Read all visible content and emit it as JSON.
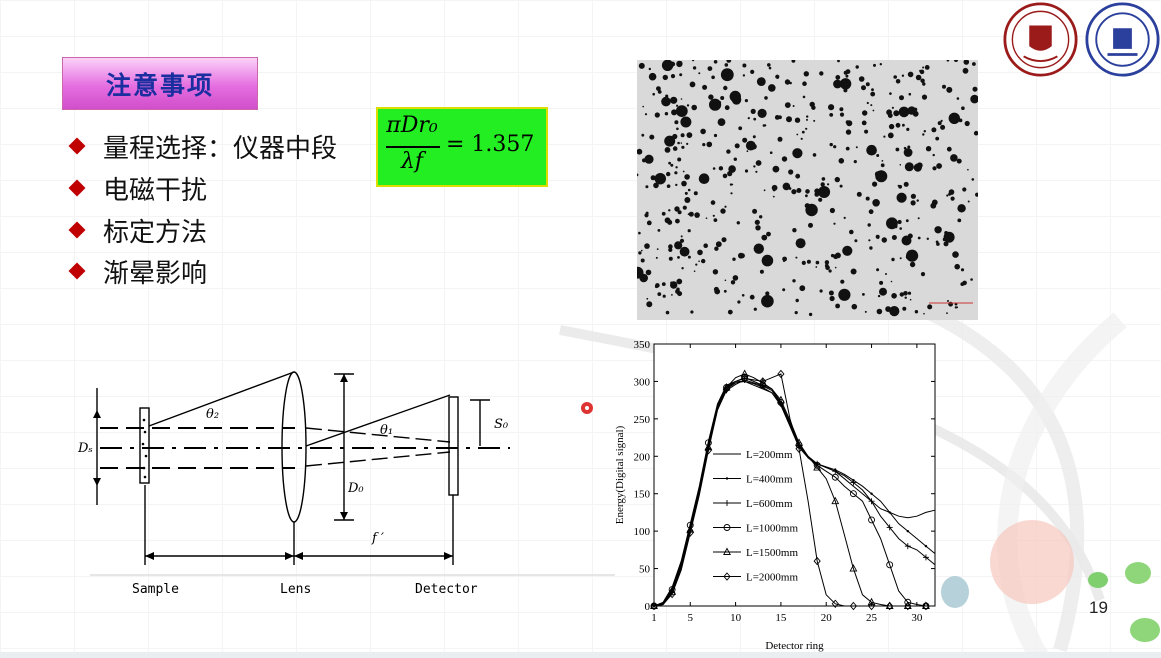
{
  "title": "注意事项",
  "bullets": [
    "量程选择：仪器中段",
    "电磁干扰",
    "标定方法",
    "渐晕影响"
  ],
  "formula": {
    "numerator": "πDr₀",
    "denominator": "λf",
    "value": "= 1.357",
    "color": "#22ee22"
  },
  "diagram": {
    "sample_label": "Sample",
    "lens_label": "Lens",
    "detector_label": "Detector",
    "d_s": "Dₛ",
    "d_o": "D₀",
    "s_o": "S₀",
    "theta2": "θ₂",
    "theta1": "θ₁",
    "focal": "f ′"
  },
  "chart_data": {
    "type": "line",
    "xlabel": "Detector ring",
    "ylabel": "Energy(Digital signal)",
    "xlim": [
      1,
      32
    ],
    "ylim": [
      0,
      350
    ],
    "xticks": [
      1,
      5,
      10,
      15,
      20,
      25,
      30
    ],
    "yticks": [
      0,
      50,
      100,
      150,
      200,
      250,
      300,
      350
    ],
    "legend_position": "center-left",
    "series": [
      {
        "name": "L=200mm",
        "marker": "none",
        "x": [
          1,
          2,
          3,
          4,
          5,
          6,
          7,
          8,
          9,
          10,
          11,
          12,
          13,
          14,
          15,
          16,
          17,
          18,
          19,
          20,
          21,
          22,
          23,
          24,
          25,
          26,
          27,
          28,
          29,
          30,
          31,
          32
        ],
        "values": [
          0,
          5,
          25,
          60,
          110,
          160,
          220,
          270,
          295,
          300,
          300,
          295,
          290,
          285,
          270,
          245,
          215,
          200,
          190,
          185,
          180,
          170,
          160,
          150,
          140,
          130,
          125,
          120,
          118,
          120,
          125,
          128
        ]
      },
      {
        "name": "L=400mm",
        "marker": "dot",
        "x": [
          1,
          2,
          3,
          4,
          5,
          6,
          7,
          8,
          9,
          10,
          11,
          12,
          13,
          14,
          15,
          16,
          17,
          18,
          19,
          20,
          21,
          22,
          23,
          24,
          25,
          26,
          27,
          28,
          29,
          30,
          31,
          32
        ],
        "values": [
          0,
          3,
          20,
          55,
          105,
          155,
          215,
          265,
          290,
          298,
          300,
          297,
          292,
          285,
          268,
          240,
          212,
          198,
          190,
          186,
          182,
          176,
          168,
          160,
          150,
          140,
          125,
          110,
          100,
          90,
          80,
          70
        ]
      },
      {
        "name": "L=600mm",
        "marker": "plus",
        "x": [
          1,
          2,
          3,
          4,
          5,
          6,
          7,
          8,
          9,
          10,
          11,
          12,
          13,
          14,
          15,
          16,
          17,
          18,
          19,
          20,
          21,
          22,
          23,
          24,
          25,
          26,
          27,
          28,
          29,
          30,
          31,
          32
        ],
        "values": [
          0,
          2,
          18,
          50,
          100,
          150,
          210,
          262,
          288,
          296,
          302,
          298,
          294,
          288,
          270,
          242,
          214,
          199,
          190,
          185,
          180,
          174,
          165,
          155,
          140,
          120,
          105,
          90,
          80,
          75,
          65,
          55
        ]
      },
      {
        "name": "L=1000mm",
        "marker": "circle",
        "x": [
          1,
          2,
          3,
          4,
          5,
          6,
          7,
          8,
          9,
          10,
          11,
          12,
          13,
          14,
          15,
          16,
          17,
          18,
          19,
          20,
          21,
          22,
          23,
          24,
          25,
          26,
          27,
          28,
          29,
          30,
          31,
          32
        ],
        "values": [
          0,
          4,
          22,
          58,
          108,
          158,
          218,
          268,
          292,
          300,
          305,
          300,
          295,
          290,
          272,
          245,
          215,
          198,
          188,
          180,
          172,
          160,
          150,
          140,
          115,
          90,
          55,
          20,
          5,
          2,
          0,
          0
        ]
      },
      {
        "name": "L=1500mm",
        "marker": "triangle",
        "x": [
          1,
          2,
          3,
          4,
          5,
          6,
          7,
          8,
          9,
          10,
          11,
          12,
          13,
          14,
          15,
          16,
          17,
          18,
          19,
          20,
          21,
          22,
          23,
          24,
          25,
          26,
          27,
          28,
          29,
          30,
          31,
          32
        ],
        "values": [
          0,
          3,
          19,
          52,
          102,
          152,
          212,
          265,
          292,
          305,
          310,
          305,
          298,
          290,
          275,
          248,
          218,
          200,
          185,
          170,
          140,
          95,
          50,
          15,
          5,
          2,
          0,
          0,
          0,
          0,
          0,
          0
        ]
      },
      {
        "name": "L=2000mm",
        "marker": "diamond",
        "x": [
          1,
          2,
          3,
          4,
          5,
          6,
          7,
          8,
          9,
          10,
          11,
          12,
          13,
          14,
          15,
          16,
          17,
          18,
          19,
          20,
          21,
          22,
          23,
          24,
          25,
          26,
          27,
          28,
          29,
          30,
          31,
          32
        ],
        "values": [
          0,
          2,
          16,
          48,
          98,
          148,
          208,
          262,
          290,
          300,
          304,
          302,
          300,
          305,
          310,
          250,
          210,
          140,
          60,
          15,
          3,
          0,
          0,
          0,
          0,
          0,
          0,
          0,
          0,
          0,
          0,
          0
        ]
      }
    ]
  },
  "page_number": "19"
}
